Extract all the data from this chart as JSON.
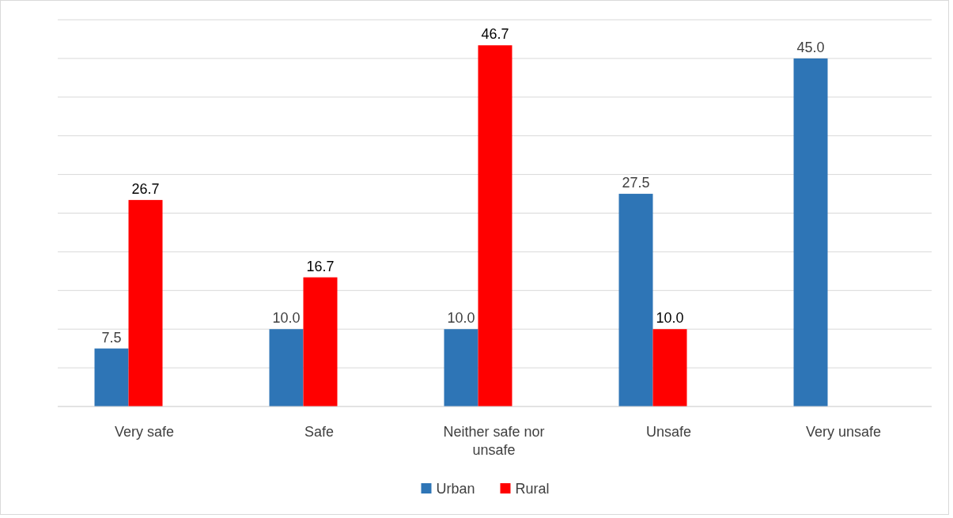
{
  "chart_data": {
    "type": "bar",
    "categories": [
      "Very safe",
      "Safe",
      "Neither safe  nor unsafe",
      "Unsafe",
      "Very unsafe"
    ],
    "series": [
      {
        "name": "Urban",
        "color": "#2e75b6",
        "values": [
          7.5,
          10.0,
          10.0,
          27.5,
          45.0
        ],
        "value_labels": [
          "7.5",
          "10.0",
          "10.0",
          "27.5",
          "45.0"
        ]
      },
      {
        "name": "Rural",
        "color": "#ff0000",
        "values": [
          26.7,
          16.7,
          46.7,
          10.0,
          null
        ],
        "value_labels": [
          "26.7",
          "16.7",
          "46.7",
          "10.0",
          null
        ]
      }
    ],
    "ylim": [
      0,
      50
    ],
    "yticks": [
      {
        "value": 0,
        "label": null
      },
      {
        "value": 5,
        "label": null
      },
      {
        "value": 10,
        "label": null
      },
      {
        "value": 15,
        "label": null
      },
      {
        "value": 20,
        "label": null
      },
      {
        "value": 25,
        "label": null
      },
      {
        "value": 30,
        "label": null
      },
      {
        "value": 35,
        "label": null
      },
      {
        "value": 40,
        "label": null
      },
      {
        "value": 45,
        "label": null
      },
      {
        "value": 50,
        "label": null
      }
    ],
    "tick_labels": "x",
    "grid": "y",
    "legend": "bottom"
  }
}
